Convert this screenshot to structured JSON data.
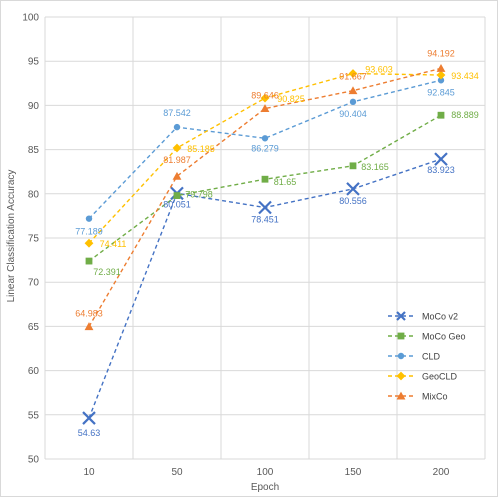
{
  "chart_data": {
    "type": "line",
    "title": "",
    "xlabel": "Epoch",
    "ylabel": "Linear Classification Accuracy",
    "categories": [
      "10",
      "50",
      "100",
      "150",
      "200"
    ],
    "ylim": [
      50,
      100
    ],
    "yticks": [
      50,
      55,
      60,
      65,
      70,
      75,
      80,
      85,
      90,
      95,
      100
    ],
    "grid": true,
    "legend_position": "right",
    "series": [
      {
        "name": "MoCo v2",
        "values": [
          54.63,
          80.051,
          78.451,
          80.556,
          83.923
        ],
        "labels": [
          "54.63",
          "80.051",
          "78.451",
          "80.556",
          "83.923"
        ],
        "color": "#4472c4",
        "marker": "x"
      },
      {
        "name": "MoCo Geo",
        "values": [
          72.391,
          79.798,
          81.65,
          83.165,
          88.889
        ],
        "labels": [
          "72.391",
          "79.798",
          "81.65",
          "83.165",
          "88.889"
        ],
        "color": "#70ad47",
        "marker": "square"
      },
      {
        "name": "CLD",
        "values": [
          77.189,
          87.542,
          86.279,
          90.404,
          92.845
        ],
        "labels": [
          "77.189",
          "87.542",
          "86.279",
          "90.404",
          "92.845"
        ],
        "color": "#5b9bd5",
        "marker": "circle"
      },
      {
        "name": "GeoCLD",
        "values": [
          74.411,
          85.185,
          90.825,
          93.603,
          93.434
        ],
        "labels": [
          "74.411",
          "85.185",
          "90.825",
          "93.603",
          "93.434"
        ],
        "color": "#ffc000",
        "marker": "diamond"
      },
      {
        "name": "MixCo",
        "values": [
          64.983,
          81.987,
          89.646,
          91.667,
          94.192
        ],
        "labels": [
          "64.983",
          "81.987",
          "89.646",
          "91.667",
          "94.192"
        ],
        "color": "#ed7d31",
        "marker": "triangle"
      }
    ]
  }
}
